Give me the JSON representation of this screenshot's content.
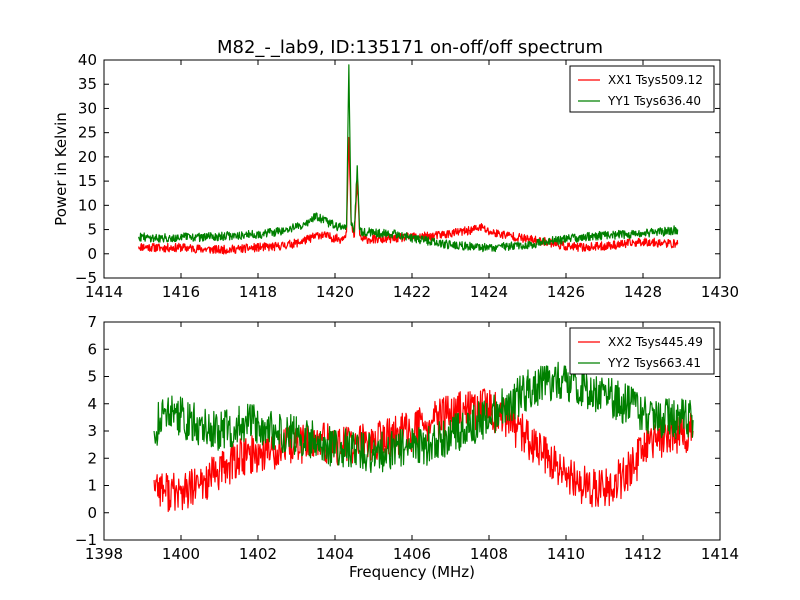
{
  "figure": {
    "title": "M82_-_lab9, ID:135171 on-off/off spectrum",
    "background": "#ffffff"
  },
  "chart_data": [
    {
      "type": "line",
      "ylabel": "Power in Kelvin",
      "xlabel": "",
      "xlim": [
        1414,
        1430
      ],
      "ylim": [
        -5,
        40
      ],
      "xticks": [
        1414,
        1416,
        1418,
        1420,
        1422,
        1424,
        1426,
        1428,
        1430
      ],
      "yticks": [
        -5,
        0,
        5,
        10,
        15,
        20,
        25,
        30,
        35,
        40
      ],
      "legend": "top-right",
      "series": [
        {
          "name": "XX1 Tsys509.12",
          "color": "#ff0000",
          "x": [
            1414.9,
            1415.5,
            1416.0,
            1416.5,
            1417.0,
            1417.5,
            1418.0,
            1418.5,
            1419.0,
            1419.3,
            1419.6,
            1419.9,
            1420.15,
            1420.3,
            1420.36,
            1420.42,
            1420.5,
            1420.58,
            1420.64,
            1420.7,
            1420.9,
            1421.2,
            1421.6,
            1422.0,
            1422.5,
            1423.0,
            1423.5,
            1423.8,
            1424.0,
            1424.5,
            1425.0,
            1425.5,
            1426.0,
            1426.5,
            1427.0,
            1427.5,
            1428.0,
            1428.5,
            1428.9
          ],
          "y": [
            1.5,
            1.2,
            1.3,
            1.0,
            0.8,
            1.0,
            1.3,
            1.5,
            2.2,
            3.0,
            4.0,
            3.4,
            3.0,
            4.5,
            24,
            6,
            3.5,
            15,
            4,
            3.0,
            3.0,
            3.0,
            3.2,
            3.5,
            3.6,
            4.2,
            4.8,
            5.5,
            4.5,
            3.8,
            3.0,
            2.5,
            1.5,
            1.3,
            1.6,
            2.0,
            2.5,
            2.2,
            2.0
          ]
        },
        {
          "name": "YY1 Tsys636.40",
          "color": "#008000",
          "x": [
            1414.9,
            1415.5,
            1416.0,
            1416.5,
            1417.0,
            1417.5,
            1418.0,
            1418.5,
            1419.0,
            1419.3,
            1419.5,
            1419.8,
            1420.1,
            1420.3,
            1420.36,
            1420.42,
            1420.5,
            1420.58,
            1420.64,
            1420.7,
            1420.9,
            1421.2,
            1421.6,
            1422.0,
            1422.5,
            1423.0,
            1423.5,
            1424.0,
            1424.5,
            1425.0,
            1425.5,
            1426.0,
            1426.5,
            1427.0,
            1427.5,
            1428.0,
            1428.5,
            1428.9
          ],
          "y": [
            3.5,
            3.2,
            3.5,
            3.4,
            3.6,
            3.8,
            4.0,
            4.5,
            5.5,
            6.5,
            7.8,
            6.5,
            5.5,
            5.5,
            39,
            6,
            5.0,
            18,
            5,
            4.5,
            4.5,
            4.2,
            4.0,
            3.2,
            2.5,
            1.8,
            1.5,
            1.2,
            1.5,
            1.8,
            2.5,
            3.0,
            3.5,
            3.8,
            4.0,
            4.2,
            4.5,
            5.0
          ]
        }
      ]
    },
    {
      "type": "line",
      "xlabel": "Frequency (MHz)",
      "ylabel": "",
      "xlim": [
        1398,
        1414
      ],
      "ylim": [
        -1,
        7
      ],
      "xticks": [
        1398,
        1400,
        1402,
        1404,
        1406,
        1408,
        1410,
        1412,
        1414
      ],
      "yticks": [
        -1,
        0,
        1,
        2,
        3,
        4,
        5,
        6,
        7
      ],
      "legend": "top-right",
      "series": [
        {
          "name": "XX2 Tsys445.49",
          "color": "#ff0000",
          "x": [
            1399.3,
            1399.6,
            1400.0,
            1400.5,
            1401.0,
            1401.5,
            1402.0,
            1402.5,
            1403.0,
            1403.5,
            1404.0,
            1404.5,
            1405.0,
            1405.5,
            1406.0,
            1406.5,
            1407.0,
            1407.5,
            1408.0,
            1408.5,
            1409.0,
            1409.5,
            1410.0,
            1410.5,
            1411.0,
            1411.5,
            1412.0,
            1412.5,
            1413.3
          ],
          "y": [
            1.2,
            0.8,
            0.7,
            1.0,
            1.5,
            2.0,
            2.2,
            2.3,
            2.5,
            2.6,
            2.5,
            2.5,
            2.6,
            2.8,
            3.0,
            3.3,
            3.6,
            3.8,
            3.8,
            3.4,
            2.7,
            2.0,
            1.3,
            1.0,
            0.9,
            1.3,
            2.2,
            2.8,
            3.0
          ]
        },
        {
          "name": "YY2 Tsys663.41",
          "color": "#008000",
          "x": [
            1399.3,
            1399.6,
            1400.0,
            1400.5,
            1401.0,
            1401.5,
            1402.0,
            1402.5,
            1403.0,
            1403.5,
            1404.0,
            1404.5,
            1405.0,
            1405.5,
            1406.0,
            1406.5,
            1407.0,
            1407.5,
            1408.0,
            1408.5,
            1409.0,
            1409.5,
            1410.0,
            1410.5,
            1411.0,
            1411.5,
            1412.0,
            1412.5,
            1413.3
          ],
          "y": [
            3.0,
            3.8,
            3.5,
            3.2,
            3.0,
            3.2,
            3.3,
            3.0,
            2.8,
            2.6,
            2.4,
            2.4,
            2.2,
            2.3,
            2.4,
            2.5,
            2.8,
            3.2,
            3.5,
            4.0,
            4.5,
            4.8,
            4.8,
            4.6,
            4.3,
            4.0,
            3.7,
            3.5,
            3.4
          ]
        }
      ]
    }
  ]
}
